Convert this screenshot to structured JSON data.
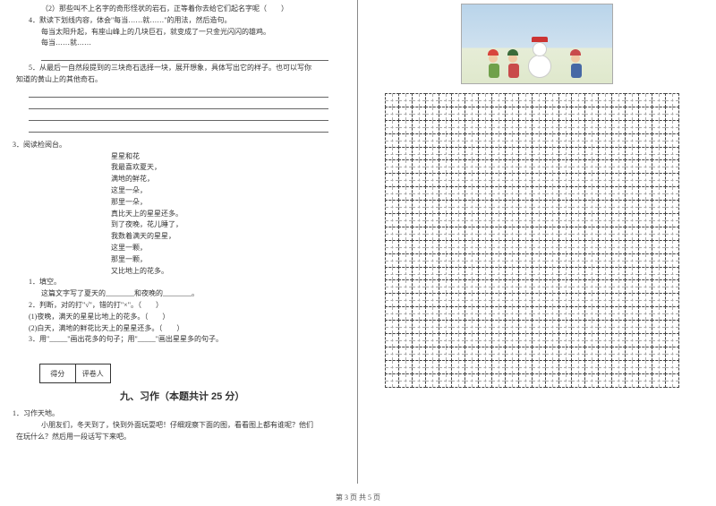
{
  "left": {
    "q2": "（2）那些叫不上名字的奇形怪状的岩石，正等着你去给它们起名字呢（　　）",
    "q4a": "4．默读下划线内容，体会\"每当……就……\"的用法，然后造句。",
    "q4b": "每当太阳升起，有座山峰上的几块巨石，就变成了一只金光闪闪的雄鸡。",
    "q4c": "每当……就……",
    "q5a": "5．从最后一自然段提到的三块奇石选择一块，展开想象，具体写出它的样子。也可以写你",
    "q5b": "知道的黄山上的其他奇石。",
    "read_h": "3．阅读检阅台。",
    "poem": [
      "星星和花",
      "我最喜欢夏天，",
      "满地的鲜花，",
      "这里一朵，",
      "那里一朵，",
      "真比天上的星星还多。",
      "到了夜晚，花儿睡了，",
      "我数着满天的星星，",
      "这里一颗，",
      "那里一颗，",
      "又比地上的花多。"
    ],
    "r1": "1．填空。",
    "r1a": "这篇文字写了夏天的________和夜晚的________。",
    "r2": "2．判断，对的打\"√\"，错的打\"×\"。（　　）",
    "r2a": "(1)夜晚，满天的星星比地上的花多。（　　）",
    "r2b": "(2)白天，满地的鲜花比天上的星星还多。（　　）",
    "r3": "3．用\"_____\"画出花多的句子；用\"_____\"画出星星多的句子。",
    "score1": "得分",
    "score2": "评卷人",
    "sec": "九、习作（本题共计 25 分）",
    "w1": "1．习作天地。",
    "w1a": "小朋友们，冬天到了，快到外面玩耍吧！仔细观察下面的图，看看图上都有谁呢？他们",
    "w1b": "在玩什么？然后用一段话写下来吧。"
  },
  "grid": {
    "rows": 22,
    "cols": 22
  },
  "footer": "第 3 页  共 5 页",
  "colors": {
    "kid1_hat": "#d8443c",
    "kid1_body": "#6fa04a",
    "kid2_hat": "#3a6b3a",
    "kid2_body": "#c94b4b",
    "kid3_hat": "#c94b4b",
    "kid3_body": "#4668a5"
  }
}
